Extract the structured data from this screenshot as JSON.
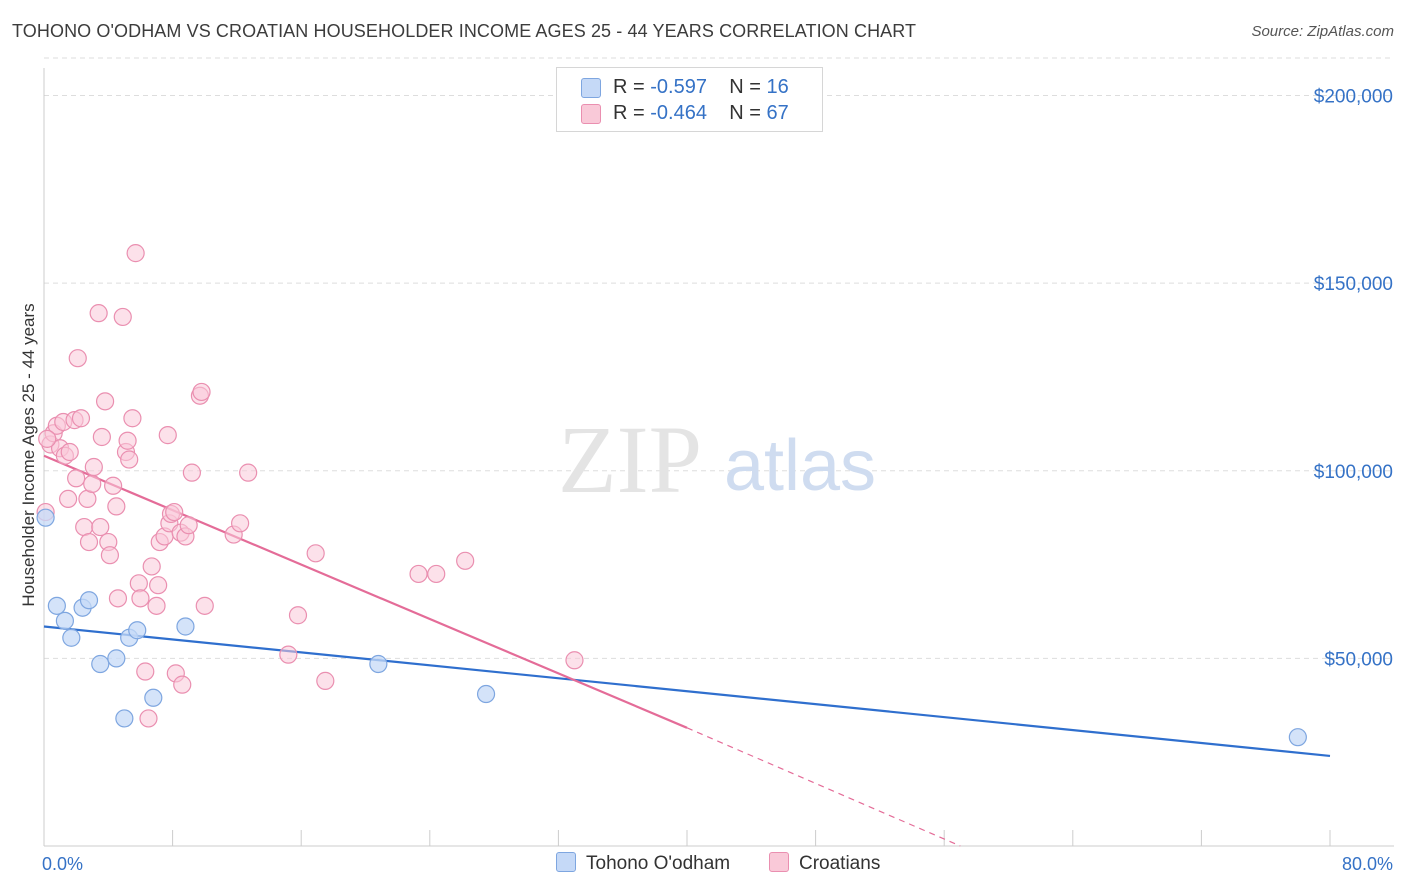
{
  "title": "TOHONO O'ODHAM VS CROATIAN HOUSEHOLDER INCOME AGES 25 - 44 YEARS CORRELATION CHART",
  "source": "Source: ZipAtlas.com",
  "watermark": {
    "zip": "ZIP",
    "atlas": "atlas"
  },
  "legend": {
    "r_label": "R =",
    "n_label": "N =",
    "rows": [
      {
        "r": "-0.597",
        "n": "16"
      },
      {
        "r": "-0.464",
        "n": "67"
      }
    ]
  },
  "colors": {
    "tohono_fill": "#c5d9f7",
    "tohono_stroke": "#7ea6e0",
    "tohono_line": "#2f6fce",
    "croatian_fill": "#f9c9d8",
    "croatian_stroke": "#ea8fb0",
    "croatian_line": "#e46c98",
    "axis_text": "#3572c6",
    "grid": "#dddddd"
  },
  "chart_data": {
    "type": "scatter",
    "title": "TOHONO O'ODHAM VS CROATIAN HOUSEHOLDER INCOME AGES 25 - 44 YEARS CORRELATION CHART",
    "xlabel": "",
    "ylabel": "Householder Income Ages 25 - 44 years",
    "xlim": [
      0,
      80
    ],
    "ylim": [
      0,
      210000
    ],
    "x_tick_labels": [
      "0.0%",
      "80.0%"
    ],
    "y_ticks": [
      50000,
      100000,
      150000,
      200000
    ],
    "y_tick_labels": [
      "$50,000",
      "$100,000",
      "$150,000",
      "$200,000"
    ],
    "series": [
      {
        "name": "Tohono O'odham",
        "points": [
          [
            0.1,
            87500
          ],
          [
            0.8,
            64000
          ],
          [
            1.3,
            60000
          ],
          [
            1.7,
            55500
          ],
          [
            2.4,
            63500
          ],
          [
            2.8,
            65500
          ],
          [
            3.5,
            48500
          ],
          [
            4.5,
            50000
          ],
          [
            5.0,
            34000
          ],
          [
            5.3,
            55500
          ],
          [
            5.8,
            57500
          ],
          [
            6.8,
            39500
          ],
          [
            8.8,
            58500
          ],
          [
            20.8,
            48500
          ],
          [
            27.5,
            40500
          ],
          [
            78.0,
            29000
          ]
        ],
        "trend": {
          "x": [
            0,
            80
          ],
          "y": [
            58500,
            24000
          ]
        }
      },
      {
        "name": "Croatians",
        "points": [
          [
            0.1,
            89000
          ],
          [
            0.4,
            107000
          ],
          [
            0.6,
            110000
          ],
          [
            0.8,
            112000
          ],
          [
            1.0,
            106000
          ],
          [
            1.2,
            113000
          ],
          [
            1.3,
            104000
          ],
          [
            1.5,
            92500
          ],
          [
            1.6,
            105000
          ],
          [
            1.9,
            113500
          ],
          [
            2.0,
            98000
          ],
          [
            2.1,
            130000
          ],
          [
            2.3,
            114000
          ],
          [
            2.5,
            85000
          ],
          [
            2.7,
            92500
          ],
          [
            2.8,
            81000
          ],
          [
            3.0,
            96500
          ],
          [
            3.1,
            101000
          ],
          [
            3.4,
            142000
          ],
          [
            3.5,
            85000
          ],
          [
            3.6,
            109000
          ],
          [
            3.8,
            118500
          ],
          [
            4.0,
            81000
          ],
          [
            4.1,
            77500
          ],
          [
            4.3,
            96000
          ],
          [
            4.5,
            90500
          ],
          [
            4.6,
            66000
          ],
          [
            4.9,
            141000
          ],
          [
            5.1,
            105000
          ],
          [
            5.2,
            108000
          ],
          [
            5.3,
            103000
          ],
          [
            5.5,
            114000
          ],
          [
            5.7,
            158000
          ],
          [
            5.9,
            70000
          ],
          [
            6.0,
            66000
          ],
          [
            6.3,
            46500
          ],
          [
            6.5,
            34000
          ],
          [
            6.7,
            74500
          ],
          [
            7.0,
            64000
          ],
          [
            7.1,
            69500
          ],
          [
            7.2,
            81000
          ],
          [
            7.5,
            82500
          ],
          [
            7.7,
            109500
          ],
          [
            7.8,
            86000
          ],
          [
            7.9,
            88500
          ],
          [
            8.1,
            89000
          ],
          [
            8.2,
            46000
          ],
          [
            8.5,
            83500
          ],
          [
            8.6,
            43000
          ],
          [
            8.8,
            82500
          ],
          [
            9.0,
            85500
          ],
          [
            9.2,
            99500
          ],
          [
            9.7,
            120000
          ],
          [
            9.8,
            121000
          ],
          [
            10.0,
            64000
          ],
          [
            11.8,
            83000
          ],
          [
            12.2,
            86000
          ],
          [
            12.7,
            99500
          ],
          [
            15.2,
            51000
          ],
          [
            15.8,
            61500
          ],
          [
            16.9,
            78000
          ],
          [
            17.5,
            44000
          ],
          [
            23.3,
            72500
          ],
          [
            24.4,
            72500
          ],
          [
            26.2,
            76000
          ],
          [
            33.0,
            49500
          ],
          [
            0.2,
            108500
          ]
        ],
        "trend": {
          "x": [
            0,
            40
          ],
          "y": [
            104000,
            31500
          ]
        },
        "trend_dashed": {
          "x": [
            40,
            57
          ],
          "y": [
            31500,
            0
          ]
        }
      }
    ]
  },
  "bottom_legend": [
    "Tohono O'odham",
    "Croatians"
  ]
}
